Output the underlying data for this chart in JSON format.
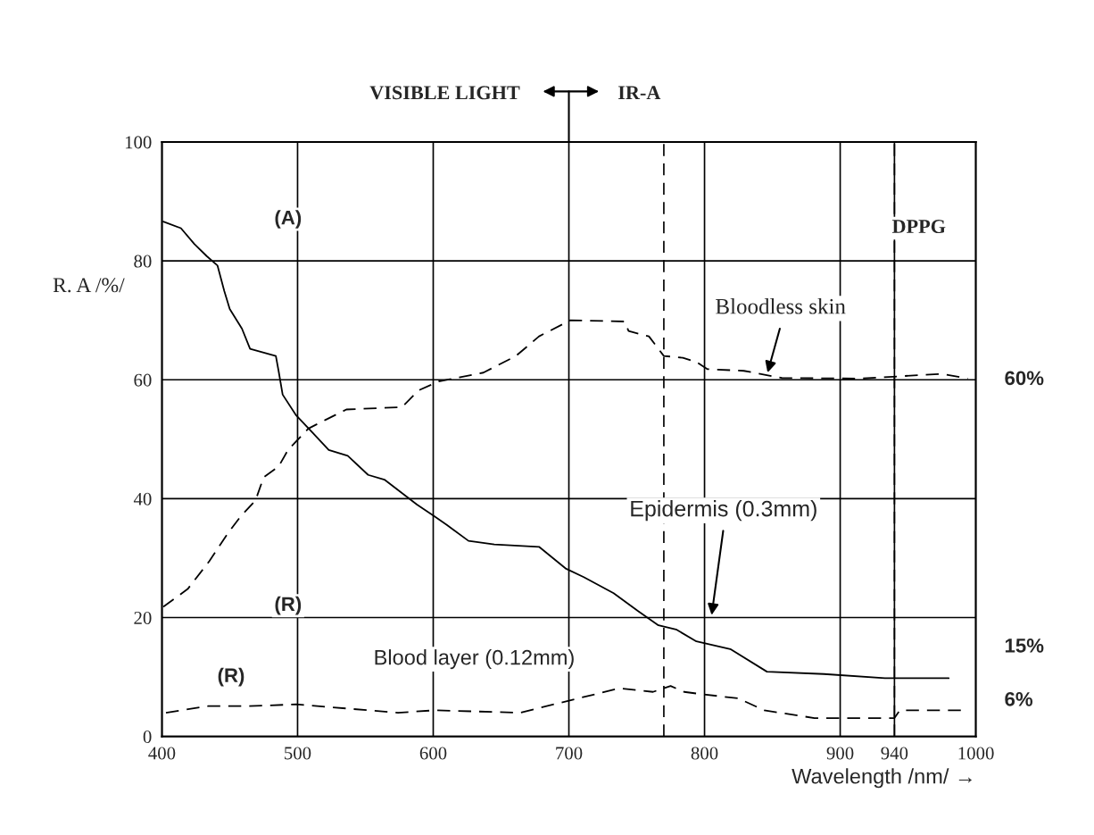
{
  "chart_data": {
    "type": "line",
    "xlabel": "Wavelength /nm/ →",
    "ylabel": "R. A /%/",
    "xlim": [
      400,
      1000
    ],
    "ylim": [
      0,
      100
    ],
    "xticks": [
      400,
      500,
      600,
      700,
      800,
      900,
      940,
      1000
    ],
    "yticks": [
      0,
      20,
      40,
      60,
      80,
      100
    ],
    "grid": true,
    "marker": "none",
    "series": [
      {
        "color": "#000000",
        "line_style": "solid",
        "x": [
          401,
          414,
          424,
          433,
          441,
          446,
          450,
          459,
          465,
          484,
          486,
          489,
          499,
          511,
          523,
          537,
          552,
          564,
          588,
          601,
          610,
          626,
          645,
          678,
          698,
          711,
          733,
          751,
          766,
          779,
          794,
          819,
          846,
          888,
          933,
          980
        ],
        "values": [
          86.6,
          85.5,
          82.8,
          80.8,
          79.2,
          74.9,
          71.9,
          68.6,
          65.2,
          64,
          61.5,
          57.5,
          54,
          51.1,
          48.2,
          47.2,
          44,
          43.2,
          39,
          37,
          35.6,
          32.9,
          32.3,
          31.9,
          28.2,
          26.8,
          24.1,
          21.1,
          18.7,
          18,
          16,
          14.7,
          10.9,
          10.5,
          9.8,
          9.8
        ]
      },
      {
        "color": "#000000",
        "line_style": "dashed",
        "x": [
          401,
          419,
          435,
          449,
          458,
          469,
          475,
          486,
          493,
          508,
          521,
          536,
          577,
          589,
          604,
          637,
          661,
          678,
          701,
          741,
          744,
          759,
          770,
          784,
          794,
          802,
          829,
          857,
          915,
          975,
          994
        ],
        "values": [
          21.8,
          24.8,
          29.5,
          34.3,
          37,
          39.7,
          43.6,
          45.4,
          48.2,
          51.8,
          53.3,
          55,
          55.4,
          58.2,
          59.7,
          61.2,
          64,
          67.3,
          70,
          69.8,
          68.2,
          67.3,
          64,
          63.7,
          63,
          61.8,
          61.5,
          60.3,
          60.2,
          61,
          60.2
        ]
      },
      {
        "color": "#000000",
        "line_style": "dashed",
        "x": [
          403,
          434,
          463,
          499,
          574,
          601,
          664,
          737,
          762,
          775,
          785,
          795,
          825,
          844,
          881,
          940,
          944,
          989
        ],
        "values": [
          4,
          5.1,
          5.1,
          5.4,
          4,
          4.4,
          4,
          8.1,
          7.5,
          8.5,
          7.5,
          7.2,
          6.4,
          4.4,
          3.1,
          3.1,
          4.4,
          4.4
        ]
      }
    ],
    "ref_lines": [
      {
        "axis": "x",
        "value": 770,
        "line_style": "dashed",
        "color": "#000000"
      },
      {
        "axis": "x",
        "value": 940,
        "line_style": "dashed",
        "color": "#000000"
      }
    ],
    "annotations": [
      "VISIBLE LIGHT",
      "IR-A",
      "DPPG",
      "(A)",
      "(R)",
      "(R)",
      "Blood layer (0.12mm)",
      {
        "text": "Bloodless skin",
        "x": 846,
        "y": 60.8
      },
      "Epidermis (0.3mm)",
      "60%",
      "15%",
      "6%"
    ]
  }
}
